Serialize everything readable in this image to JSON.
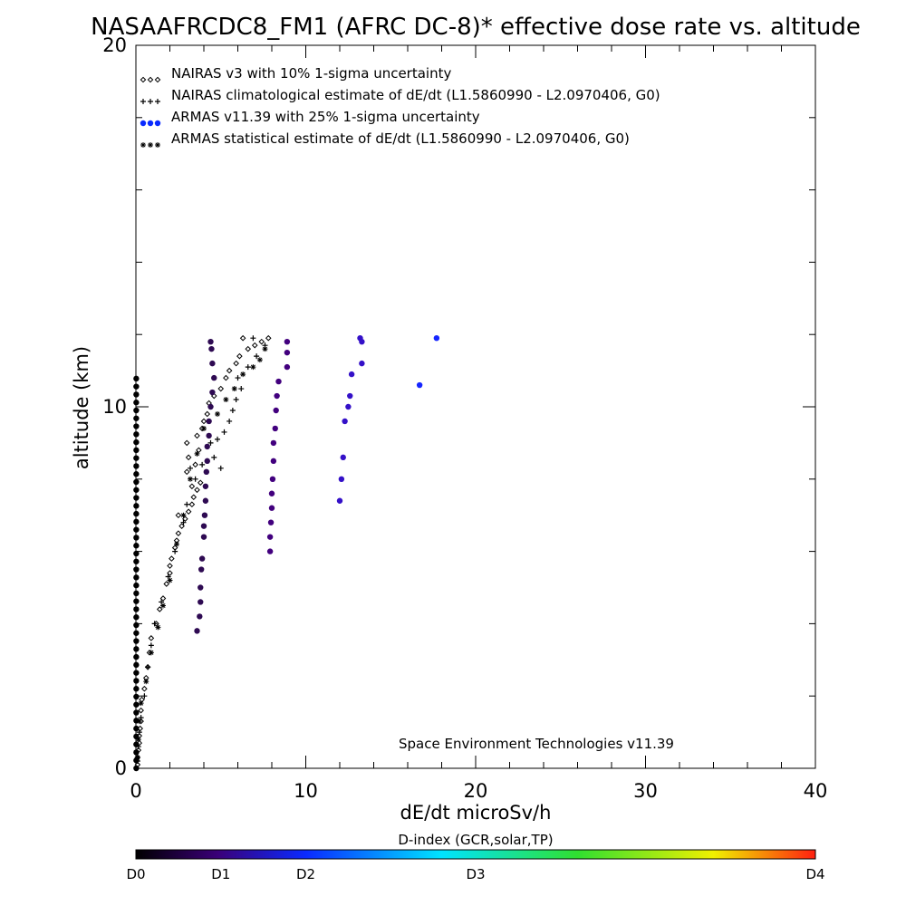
{
  "chart_data": {
    "type": "scatter",
    "title": "NASAAFRCDC8_FM1 (AFRC DC-8)* effective dose rate vs. altitude",
    "xlabel": "dE/dt microSv/h",
    "ylabel": "altitude (km)",
    "xlim": [
      0,
      40
    ],
    "ylim": [
      0,
      20
    ],
    "x_ticks": [
      "0",
      "10",
      "20",
      "30",
      "40"
    ],
    "y_ticks": [
      "0",
      "10",
      "20"
    ],
    "legend_placement": "top-left",
    "annotation": "Space Environment Technologies v11.39",
    "colorbar": {
      "title": "D-index (GCR,solar,TP)",
      "labels": [
        "D0",
        "D1",
        "D2",
        "D3",
        "D4"
      ],
      "positions": [
        0,
        0.125,
        0.25,
        0.5,
        1.0
      ],
      "colors": [
        "#000000",
        "#3a0078",
        "#0a2aff",
        "#00e4ff",
        "#30e030",
        "#f0f000",
        "#ff2010"
      ]
    },
    "series": [
      {
        "name": "NAIRAS v3 with 10% 1-sigma uncertainty",
        "marker": "diamond",
        "color": "#000000",
        "points": [
          [
            0.1,
            0.1
          ],
          [
            0.1,
            0.3
          ],
          [
            0.15,
            0.5
          ],
          [
            0.2,
            0.7
          ],
          [
            0.2,
            0.9
          ],
          [
            0.25,
            1.1
          ],
          [
            0.3,
            1.3
          ],
          [
            0.3,
            1.6
          ],
          [
            0.35,
            1.9
          ],
          [
            0.5,
            2.2
          ],
          [
            0.6,
            2.5
          ],
          [
            0.7,
            2.8
          ],
          [
            0.8,
            3.2
          ],
          [
            0.9,
            3.6
          ],
          [
            1.2,
            4.0
          ],
          [
            1.4,
            4.4
          ],
          [
            1.6,
            4.7
          ],
          [
            1.8,
            5.1
          ],
          [
            2.0,
            5.4
          ],
          [
            2.0,
            5.6
          ],
          [
            2.1,
            5.8
          ],
          [
            2.3,
            6.1
          ],
          [
            2.4,
            6.3
          ],
          [
            2.5,
            6.5
          ],
          [
            2.7,
            6.7
          ],
          [
            2.9,
            6.9
          ],
          [
            2.5,
            7.0
          ],
          [
            3.1,
            7.1
          ],
          [
            3.3,
            7.3
          ],
          [
            3.4,
            7.5
          ],
          [
            3.6,
            7.7
          ],
          [
            3.3,
            7.8
          ],
          [
            3.8,
            7.9
          ],
          [
            3.0,
            8.2
          ],
          [
            3.5,
            8.4
          ],
          [
            3.1,
            8.6
          ],
          [
            3.7,
            8.8
          ],
          [
            3.0,
            9.0
          ],
          [
            3.6,
            9.2
          ],
          [
            3.9,
            9.4
          ],
          [
            4.0,
            9.6
          ],
          [
            4.2,
            9.8
          ],
          [
            4.3,
            10.1
          ],
          [
            4.6,
            10.3
          ],
          [
            5.0,
            10.5
          ],
          [
            5.3,
            10.8
          ],
          [
            5.5,
            11.0
          ],
          [
            5.9,
            11.2
          ],
          [
            6.1,
            11.4
          ],
          [
            6.6,
            11.6
          ],
          [
            7.0,
            11.7
          ],
          [
            7.4,
            11.8
          ],
          [
            7.8,
            11.9
          ],
          [
            6.3,
            11.9
          ]
        ]
      },
      {
        "name": "NAIRAS climatological estimate of dE/dt (L1.5860990 - L2.0970406, G0)",
        "marker": "plus",
        "color": "#000000",
        "points": [
          [
            0.1,
            0.2
          ],
          [
            0.15,
            0.6
          ],
          [
            0.2,
            1.0
          ],
          [
            0.3,
            1.4
          ],
          [
            0.5,
            2.0
          ],
          [
            0.7,
            2.8
          ],
          [
            0.9,
            3.4
          ],
          [
            1.1,
            4.0
          ],
          [
            1.5,
            4.6
          ],
          [
            1.9,
            5.3
          ],
          [
            2.3,
            6.0
          ],
          [
            2.8,
            6.8
          ],
          [
            3.0,
            7.3
          ],
          [
            3.5,
            8.0
          ],
          [
            3.2,
            8.3
          ],
          [
            3.9,
            8.4
          ],
          [
            4.2,
            8.5
          ],
          [
            4.6,
            8.6
          ],
          [
            5.0,
            8.3
          ],
          [
            4.8,
            9.1
          ],
          [
            4.4,
            9.0
          ],
          [
            5.2,
            9.3
          ],
          [
            5.5,
            9.6
          ],
          [
            5.7,
            9.9
          ],
          [
            5.9,
            10.2
          ],
          [
            6.2,
            10.5
          ],
          [
            6.0,
            10.8
          ],
          [
            6.6,
            11.1
          ],
          [
            7.1,
            11.4
          ],
          [
            7.6,
            11.7
          ],
          [
            6.9,
            11.9
          ]
        ]
      },
      {
        "name": "ARMAS v11.39 with 25% 1-sigma uncertainty",
        "marker": "filled-circle",
        "color": "#0a2aff",
        "d_index_note": "colored by D-index",
        "points": [
          [
            3.6,
            3.8
          ],
          [
            3.75,
            4.2
          ],
          [
            3.8,
            4.6
          ],
          [
            3.8,
            5.0
          ],
          [
            3.85,
            5.5
          ],
          [
            3.9,
            5.8
          ],
          [
            4.0,
            6.4
          ],
          [
            4.0,
            6.7
          ],
          [
            4.05,
            7.0
          ],
          [
            4.1,
            7.4
          ],
          [
            4.1,
            7.8
          ],
          [
            4.15,
            8.2
          ],
          [
            4.2,
            8.5
          ],
          [
            4.2,
            8.9
          ],
          [
            4.3,
            9.2
          ],
          [
            4.3,
            9.6
          ],
          [
            4.4,
            10.0
          ],
          [
            4.5,
            10.4
          ],
          [
            4.6,
            10.8
          ],
          [
            4.5,
            11.2
          ],
          [
            4.45,
            11.6
          ],
          [
            4.4,
            11.8
          ],
          [
            7.9,
            6.0
          ],
          [
            7.9,
            6.4
          ],
          [
            7.95,
            6.8
          ],
          [
            8.0,
            7.2
          ],
          [
            8.0,
            7.6
          ],
          [
            8.05,
            8.0
          ],
          [
            8.1,
            8.5
          ],
          [
            8.1,
            9.0
          ],
          [
            8.2,
            9.4
          ],
          [
            8.25,
            9.9
          ],
          [
            8.3,
            10.3
          ],
          [
            8.4,
            10.7
          ],
          [
            8.9,
            11.1
          ],
          [
            8.9,
            11.5
          ],
          [
            8.9,
            11.8
          ],
          [
            12.0,
            7.4
          ],
          [
            12.1,
            8.0
          ],
          [
            12.2,
            8.6
          ],
          [
            12.3,
            9.6
          ],
          [
            12.5,
            10.0
          ],
          [
            12.6,
            10.3
          ],
          [
            12.7,
            10.9
          ],
          [
            13.3,
            11.2
          ],
          [
            13.3,
            11.8
          ],
          [
            13.2,
            11.9
          ],
          [
            16.7,
            10.6
          ],
          [
            17.7,
            11.9
          ]
        ]
      },
      {
        "name": "ARMAS statistical estimate of dE/dt (L1.5860990 - L2.0970406, G0)",
        "marker": "asterisk",
        "color": "#000000",
        "points": [
          [
            0.1,
            0.3
          ],
          [
            0.15,
            0.8
          ],
          [
            0.2,
            1.3
          ],
          [
            0.3,
            1.8
          ],
          [
            0.6,
            2.4
          ],
          [
            0.9,
            3.2
          ],
          [
            1.3,
            3.9
          ],
          [
            1.6,
            4.5
          ],
          [
            2.0,
            5.2
          ],
          [
            2.4,
            6.2
          ],
          [
            2.8,
            7.0
          ],
          [
            3.2,
            8.0
          ],
          [
            3.6,
            8.7
          ],
          [
            4.0,
            9.4
          ],
          [
            4.8,
            9.8
          ],
          [
            5.3,
            10.2
          ],
          [
            5.8,
            10.5
          ],
          [
            6.3,
            10.9
          ],
          [
            6.9,
            11.1
          ],
          [
            7.3,
            11.3
          ],
          [
            7.6,
            11.6
          ]
        ]
      }
    ]
  }
}
